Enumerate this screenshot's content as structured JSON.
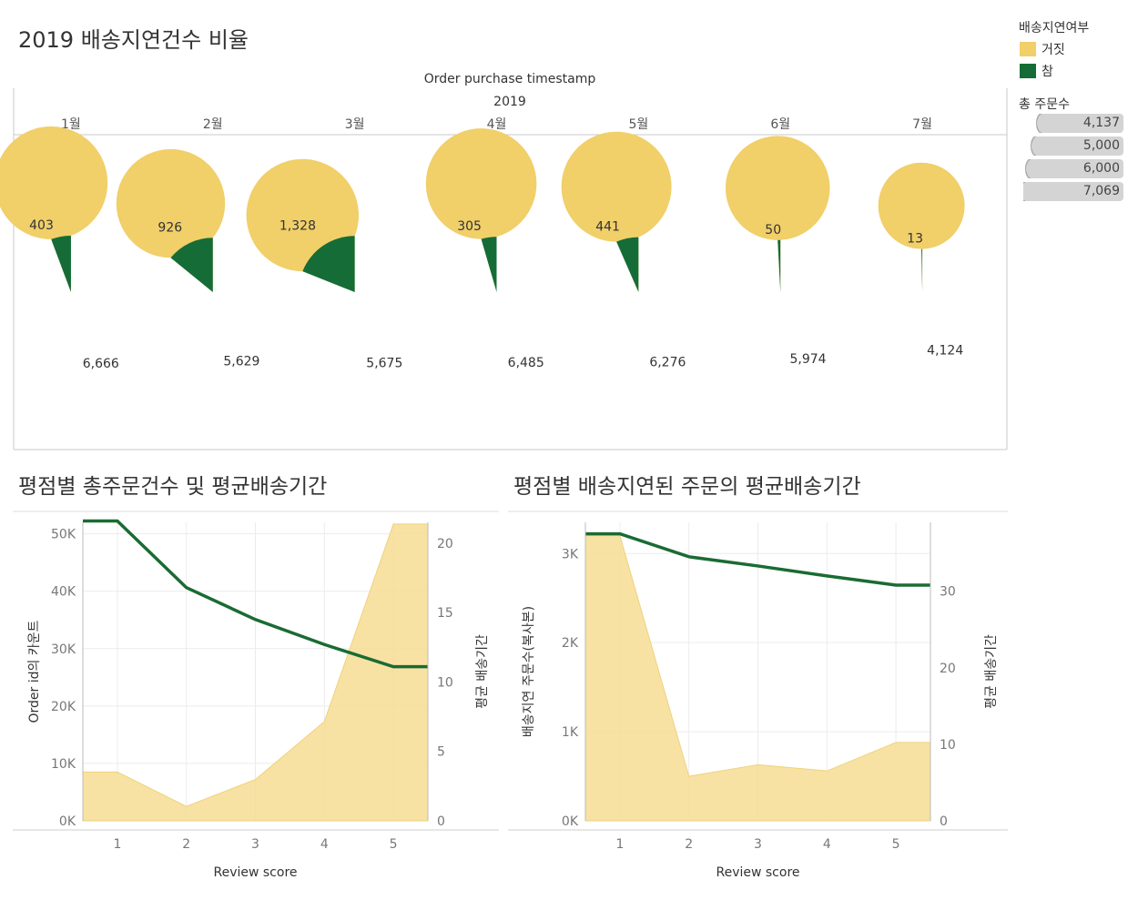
{
  "title": "2019 배송지연건수 비율",
  "colors": {
    "false": "#f1cf69",
    "true": "#156c36",
    "area": "#f6dd94",
    "line": "#1a6b33"
  },
  "legend": {
    "title": "배송지연여부",
    "items": [
      {
        "label": "거짓",
        "color": "#f1cf69"
      },
      {
        "label": "참",
        "color": "#156c36"
      }
    ]
  },
  "size_legend": {
    "title": "총 주문수",
    "items": [
      "4,137",
      "5,000",
      "6,000",
      "7,069"
    ]
  },
  "chart_data": [
    {
      "type": "pie",
      "title": "",
      "column_header": "Order purchase timestamp",
      "year_header": "2019",
      "categories": [
        "1월",
        "2월",
        "3월",
        "4월",
        "5월",
        "6월",
        "7월"
      ],
      "series": [
        {
          "name": "참",
          "values": [
            403,
            926,
            1328,
            305,
            441,
            50,
            13
          ],
          "labels": [
            "403",
            "926",
            "1,328",
            "305",
            "441",
            "50",
            "13"
          ]
        },
        {
          "name": "거짓",
          "values": [
            6666,
            5629,
            5675,
            6485,
            6276,
            5974,
            4124
          ],
          "labels": [
            "6,666",
            "5,629",
            "5,675",
            "6,485",
            "6,276",
            "5,974",
            "4,124"
          ]
        }
      ]
    },
    {
      "type": "area",
      "title": "평점별 총주문건수 및 평균배송기간",
      "xlabel": "Review score",
      "ylabel": "Order id의 카운트",
      "y2label": "평균 배송기간",
      "x": [
        1,
        2,
        3,
        4,
        5
      ],
      "xticks": [
        "1",
        "2",
        "3",
        "4",
        "5"
      ],
      "ylim": [
        0,
        52000
      ],
      "yticks": [
        0,
        10000,
        20000,
        30000,
        40000,
        50000
      ],
      "ytick_labels": [
        "0K",
        "10K",
        "20K",
        "30K",
        "40K",
        "50K"
      ],
      "y2lim": [
        0,
        21.5
      ],
      "y2ticks": [
        0,
        5,
        10,
        15,
        20
      ],
      "y2tick_labels": [
        "0",
        "5",
        "10",
        "15",
        "20"
      ],
      "series": [
        {
          "name": "Order id의 카운트",
          "type": "area",
          "axis": "left",
          "values": [
            8500,
            2500,
            7200,
            17300,
            51700
          ]
        },
        {
          "name": "평균 배송기간",
          "type": "line",
          "axis": "right",
          "values": [
            21.6,
            16.8,
            14.5,
            12.7,
            11.1
          ]
        }
      ]
    },
    {
      "type": "area",
      "title": "평점별 배송지연된 주문의 평균배송기간",
      "xlabel": "Review score",
      "ylabel": "배송지연 주문수(복사본)",
      "y2label": "평균 배송기간",
      "x": [
        1,
        2,
        3,
        4,
        5
      ],
      "xticks": [
        "1",
        "2",
        "3",
        "4",
        "5"
      ],
      "ylim": [
        0,
        3350
      ],
      "yticks": [
        0,
        1000,
        2000,
        3000
      ],
      "ytick_labels": [
        "0K",
        "1K",
        "2K",
        "3K"
      ],
      "y2lim": [
        0,
        39
      ],
      "y2ticks": [
        0,
        10,
        20,
        30
      ],
      "y2tick_labels": [
        "0",
        "10",
        "20",
        "30"
      ],
      "series": [
        {
          "name": "배송지연 주문수(복사본)",
          "type": "area",
          "axis": "left",
          "values": [
            3200,
            500,
            630,
            560,
            880
          ]
        },
        {
          "name": "평균 배송기간",
          "type": "line",
          "axis": "right",
          "values": [
            37.5,
            34.5,
            33.3,
            32.0,
            30.8
          ]
        }
      ]
    }
  ]
}
